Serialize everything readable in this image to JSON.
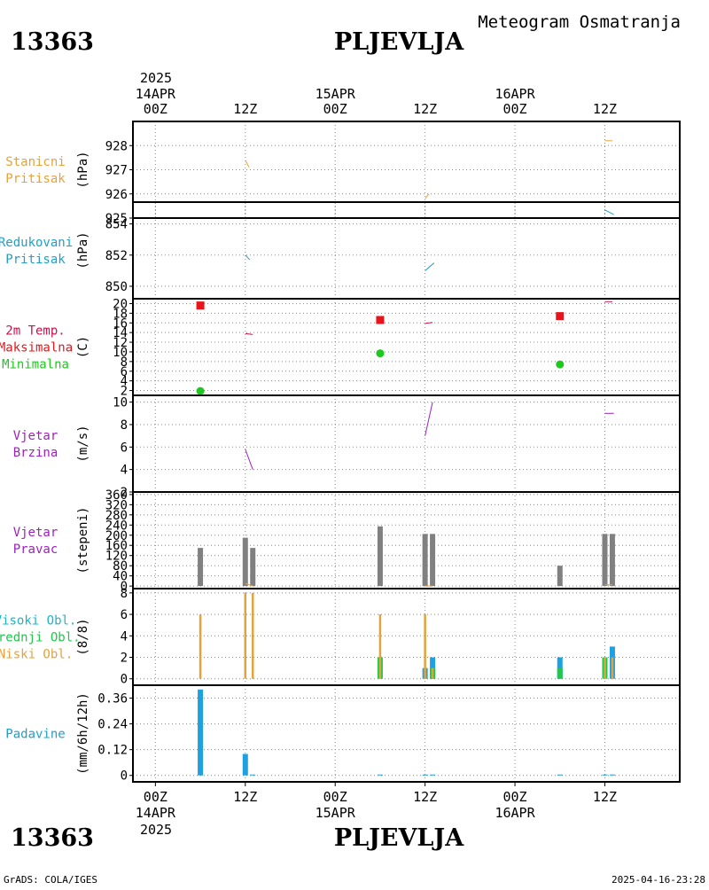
{
  "header": {
    "station_id": "13363",
    "station_name": "PLJEVLJA",
    "subtitle": "Meteogram Osmatranja"
  },
  "footer": {
    "credit": "GrADS: COLA/IGES",
    "timestamp": "2025-04-16-23:28"
  },
  "time_axis": {
    "year": "2025",
    "ticks": [
      {
        "t": 0,
        "label": "00Z",
        "date": "14APR"
      },
      {
        "t": 12,
        "label": "12Z",
        "date": ""
      },
      {
        "t": 24,
        "label": "00Z",
        "date": "15APR"
      },
      {
        "t": 36,
        "label": "12Z",
        "date": ""
      },
      {
        "t": 48,
        "label": "00Z",
        "date": "16APR"
      },
      {
        "t": 60,
        "label": "12Z",
        "date": ""
      }
    ],
    "range_hours": [
      -3,
      70
    ]
  },
  "panels": [
    {
      "id": "station-pressure",
      "labels": [
        {
          "text": "Stanicni",
          "color": "#e6a23a"
        },
        {
          "text": "Pritisak",
          "color": "#e6a23a"
        }
      ],
      "unit": "(hPa)",
      "ylim": [
        925,
        929
      ],
      "ticks": [
        925,
        926,
        927,
        928
      ]
    },
    {
      "id": "reduced-pressure",
      "labels": [
        {
          "text": "Redukovani",
          "color": "#1fa0c8"
        },
        {
          "text": "Pritisak",
          "color": "#1fa0c8"
        }
      ],
      "unit": "(hPa)",
      "ylim": [
        849.2,
        855.4
      ],
      "ticks": [
        850,
        852,
        854
      ]
    },
    {
      "id": "temperature",
      "labels": [
        {
          "text": "2m Temp.",
          "color": "#d0104a"
        },
        {
          "text": "Maksimalna",
          "color": "#e8141c"
        },
        {
          "text": "Minimalna",
          "color": "#1ec81e"
        }
      ],
      "unit": "(C)",
      "ylim": [
        1,
        21
      ],
      "ticks": [
        2,
        4,
        6,
        8,
        10,
        12,
        14,
        16,
        18,
        20
      ]
    },
    {
      "id": "wind-speed",
      "labels": [
        {
          "text": "Vjetar",
          "color": "#a020c0"
        },
        {
          "text": "Brzina",
          "color": "#a020c0"
        }
      ],
      "unit": "(m/s)",
      "ylim": [
        2,
        10.6
      ],
      "ticks": [
        2,
        4,
        6,
        8,
        10
      ]
    },
    {
      "id": "wind-direction",
      "labels": [
        {
          "text": "Vjetar",
          "color": "#a020c0"
        },
        {
          "text": "Pravac",
          "color": "#a020c0"
        }
      ],
      "unit": "(stepeni)",
      "ylim": [
        -10,
        370
      ],
      "ticks": [
        0,
        40,
        80,
        120,
        160,
        200,
        240,
        280,
        320,
        360
      ]
    },
    {
      "id": "clouds",
      "labels": [
        {
          "text": "Visoki Obl.",
          "color": "#1eb4c8"
        },
        {
          "text": "Srednji Obl.",
          "color": "#1ec84a"
        },
        {
          "text": "Niski Obl.",
          "color": "#e6a23a"
        }
      ],
      "unit": "(8/8)",
      "ylim": [
        -0.6,
        8.4
      ],
      "ticks": [
        0,
        2,
        4,
        6,
        8
      ]
    },
    {
      "id": "precipitation",
      "labels": [
        {
          "text": "Padavine",
          "color": "#1fa0c8"
        }
      ],
      "unit": "(mm/6h/12h)",
      "ylim": [
        -0.03,
        0.42
      ],
      "ticks": [
        0,
        0.12,
        0.24,
        0.36
      ],
      "tick_labels": [
        "0",
        "0.12",
        "0.24",
        "0.36"
      ]
    }
  ],
  "chart_data": [
    {
      "type": "line",
      "panel": "station-pressure",
      "series": [
        {
          "color": "#e6a23a",
          "segments": [
            {
              "x": [
                12,
                12.5
              ],
              "y": [
                927.4,
                927.1
              ]
            },
            {
              "x": [
                36,
                36.5
              ],
              "y": [
                925.8,
                926.0
              ]
            },
            {
              "x": [
                60,
                61
              ],
              "y": [
                928.2,
                928.2
              ]
            }
          ]
        }
      ]
    },
    {
      "type": "line",
      "panel": "reduced-pressure",
      "series": [
        {
          "color": "#1fa0c8",
          "segments": [
            {
              "x": [
                12,
                12.6
              ],
              "y": [
                852.0,
                851.7
              ]
            },
            {
              "x": [
                36,
                37.2
              ],
              "y": [
                851.0,
                851.5
              ]
            },
            {
              "x": [
                60,
                61.2
              ],
              "y": [
                854.9,
                854.6
              ]
            }
          ]
        }
      ]
    },
    {
      "type": "scatter",
      "panel": "temperature",
      "series": [
        {
          "name": "Maksimalna",
          "color": "#e8141c",
          "marker": "square",
          "points": [
            {
              "x": 6,
              "y": 19.6
            },
            {
              "x": 30,
              "y": 16.6
            },
            {
              "x": 54,
              "y": 17.4
            }
          ]
        },
        {
          "name": "Minimalna",
          "color": "#1ec81e",
          "marker": "circle",
          "points": [
            {
              "x": 6,
              "y": 1.9
            },
            {
              "x": 30,
              "y": 9.7
            },
            {
              "x": 54,
              "y": 7.4
            }
          ]
        },
        {
          "name": "2m Temp.",
          "color": "#d0104a",
          "marker": "line",
          "segments": [
            {
              "x": [
                12,
                13
              ],
              "y": [
                13.8,
                13.6
              ]
            },
            {
              "x": [
                36,
                37
              ],
              "y": [
                15.9,
                16.1
              ]
            },
            {
              "x": [
                60,
                61
              ],
              "y": [
                20.4,
                20.4
              ]
            }
          ]
        }
      ]
    },
    {
      "type": "line",
      "panel": "wind-speed",
      "series": [
        {
          "color": "#a020c0",
          "segments": [
            {
              "x": [
                12,
                13
              ],
              "y": [
                5.8,
                4.0
              ]
            },
            {
              "x": [
                36,
                37
              ],
              "y": [
                7.0,
                10.0
              ]
            },
            {
              "x": [
                60,
                61.2
              ],
              "y": [
                9.0,
                9.0
              ]
            }
          ]
        }
      ]
    },
    {
      "type": "bar",
      "panel": "wind-direction",
      "series": [
        {
          "color": "#808080",
          "points": [
            {
              "x": 6,
              "y": 150
            },
            {
              "x": 12,
              "y": 190
            },
            {
              "x": 13,
              "y": 150
            },
            {
              "x": 30,
              "y": 235
            },
            {
              "x": 36,
              "y": 205
            },
            {
              "x": 37,
              "y": 205
            },
            {
              "x": 54,
              "y": 80
            },
            {
              "x": 60,
              "y": 205
            },
            {
              "x": 61,
              "y": 205
            }
          ]
        },
        {
          "color": "#e6a23a",
          "marker": "line",
          "segments": [
            {
              "x": [
                12,
                13
              ],
              "y": [
                10,
                0
              ]
            },
            {
              "x": [
                36,
                37
              ],
              "y": [
                0,
                0
              ]
            },
            {
              "x": [
                60,
                61
              ],
              "y": [
                5,
                5
              ]
            }
          ]
        }
      ]
    },
    {
      "type": "bar",
      "panel": "clouds",
      "series": [
        {
          "name": "Visoki Obl.",
          "color": "#1fa0e0",
          "points": [
            {
              "x": 6,
              "y": 0
            },
            {
              "x": 12,
              "y": 0
            },
            {
              "x": 13,
              "y": 0
            },
            {
              "x": 30,
              "y": 0
            },
            {
              "x": 36,
              "y": 1
            },
            {
              "x": 37,
              "y": 2
            },
            {
              "x": 54,
              "y": 2
            },
            {
              "x": 60,
              "y": 0
            },
            {
              "x": 61,
              "y": 3
            }
          ]
        },
        {
          "name": "Srednji Obl.",
          "color": "#1ec84a",
          "points": [
            {
              "x": 6,
              "y": 0
            },
            {
              "x": 12,
              "y": 0
            },
            {
              "x": 13,
              "y": 0
            },
            {
              "x": 30,
              "y": 2
            },
            {
              "x": 36,
              "y": 0
            },
            {
              "x": 37,
              "y": 1
            },
            {
              "x": 54,
              "y": 1
            },
            {
              "x": 60,
              "y": 2
            },
            {
              "x": 61,
              "y": 0
            }
          ]
        },
        {
          "name": "Niski Obl.",
          "color": "#e6a23a",
          "points": [
            {
              "x": 6,
              "y": 6
            },
            {
              "x": 12,
              "y": 8
            },
            {
              "x": 13,
              "y": 8
            },
            {
              "x": 30,
              "y": 6
            },
            {
              "x": 36,
              "y": 6
            },
            {
              "x": 37,
              "y": 1
            },
            {
              "x": 54,
              "y": 0
            },
            {
              "x": 60,
              "y": 2
            },
            {
              "x": 61,
              "y": 2
            }
          ]
        }
      ]
    },
    {
      "type": "bar",
      "panel": "precipitation",
      "series": [
        {
          "color": "#1fa0e0",
          "points": [
            {
              "x": 6,
              "y": 0.4
            },
            {
              "x": 12,
              "y": 0.1
            },
            {
              "x": 13,
              "y": 0.004
            },
            {
              "x": 30,
              "y": 0.004
            },
            {
              "x": 36,
              "y": 0.004
            },
            {
              "x": 37,
              "y": 0.004
            },
            {
              "x": 54,
              "y": 0.004
            },
            {
              "x": 60,
              "y": 0.004
            },
            {
              "x": 61,
              "y": 0.004
            }
          ]
        }
      ]
    }
  ]
}
